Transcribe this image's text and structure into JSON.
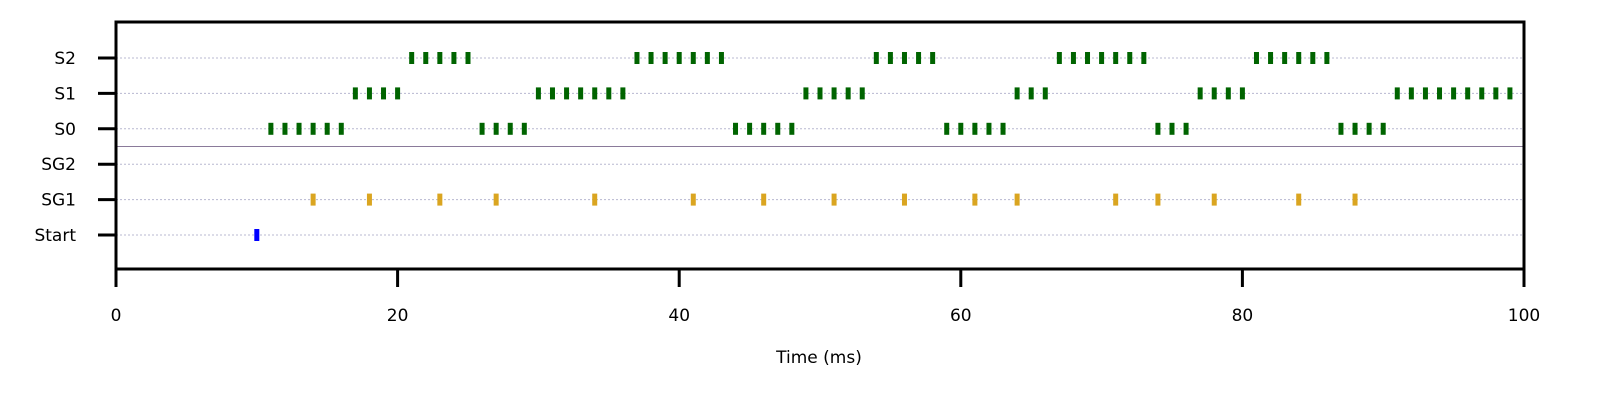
{
  "chart_data": {
    "type": "scatter",
    "xlabel": "Time (ms)",
    "xlim": [
      0,
      100
    ],
    "x_ticks": [
      "0",
      "20",
      "40",
      "60",
      "80",
      "100"
    ],
    "rows": [
      "Start",
      "SG1",
      "SG2",
      "S0",
      "S1",
      "S2"
    ],
    "grid": "dotted horizontal per row",
    "separator_between": [
      "SG2",
      "S0"
    ],
    "colors": {
      "start": "#0000ff",
      "sg": "#daa520",
      "s": "#006400",
      "grid": "#b8b8d0",
      "separator": "#8a7a9a"
    },
    "series": [
      {
        "row": "Start",
        "color_key": "start",
        "x": [
          10
        ]
      },
      {
        "row": "SG1",
        "color_key": "sg",
        "x": [
          14,
          18,
          23,
          27,
          34,
          41,
          46,
          51,
          56,
          61,
          64,
          71,
          74,
          78,
          84,
          88
        ]
      },
      {
        "row": "SG2",
        "color_key": "sg",
        "x": []
      },
      {
        "row": "S0",
        "color_key": "s",
        "x": [
          11,
          12,
          13,
          14,
          15,
          16,
          26,
          27,
          28,
          29,
          44,
          45,
          46,
          47,
          48,
          59,
          60,
          61,
          62,
          63,
          74,
          75,
          76,
          87,
          88,
          89,
          90
        ]
      },
      {
        "row": "S1",
        "color_key": "s",
        "x": [
          17,
          18,
          19,
          20,
          30,
          31,
          32,
          33,
          34,
          35,
          36,
          49,
          50,
          51,
          52,
          53,
          64,
          65,
          66,
          77,
          78,
          79,
          80,
          91,
          92,
          93,
          94,
          95,
          96,
          97,
          98,
          99
        ]
      },
      {
        "row": "S2",
        "color_key": "s",
        "x": [
          21,
          22,
          23,
          24,
          25,
          37,
          38,
          39,
          40,
          41,
          42,
          43,
          54,
          55,
          56,
          57,
          58,
          67,
          68,
          69,
          70,
          71,
          72,
          73,
          81,
          82,
          83,
          84,
          85,
          86
        ]
      }
    ]
  }
}
